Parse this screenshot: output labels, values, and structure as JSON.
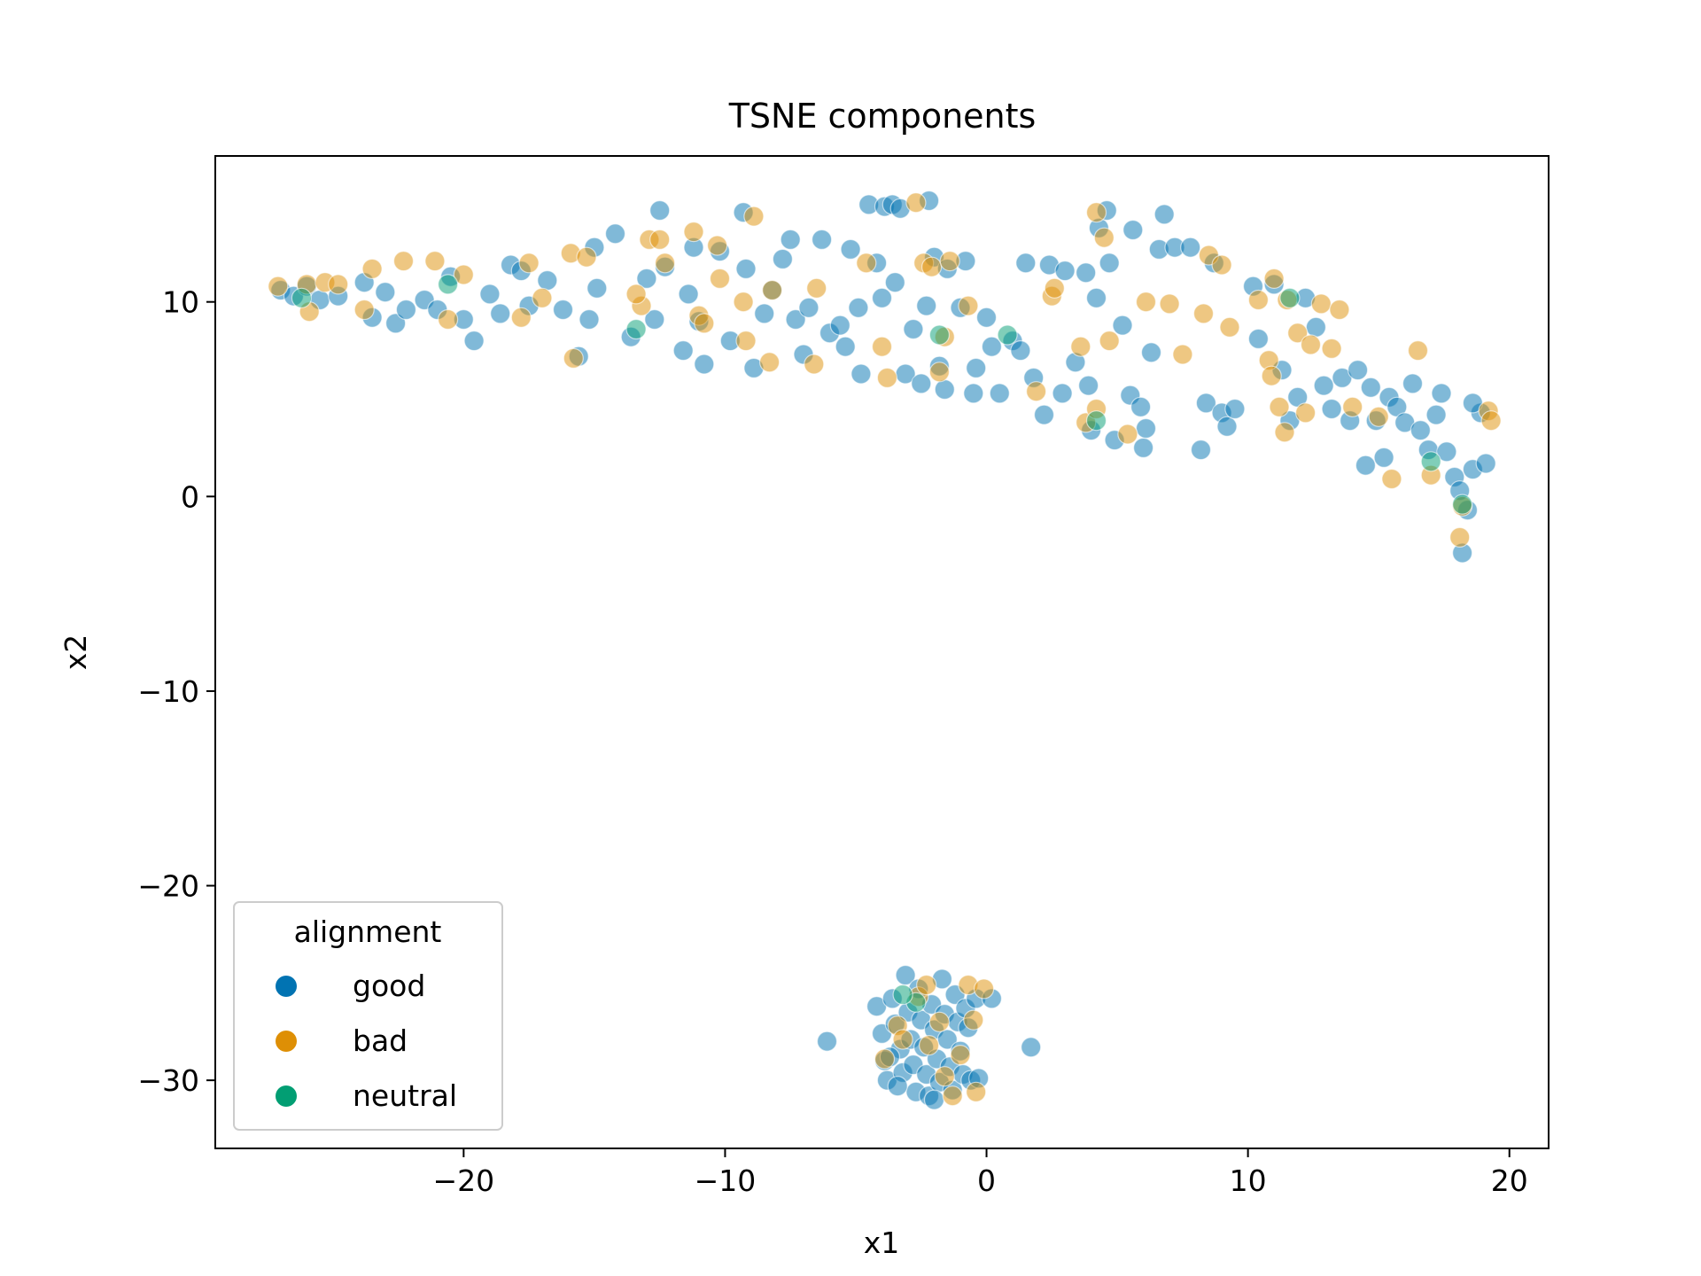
{
  "chart_data": {
    "type": "scatter",
    "title": "TSNE components",
    "xlabel": "x1",
    "ylabel": "x2",
    "xlim": [
      -29.5,
      21.5
    ],
    "ylim": [
      -33.5,
      17.5
    ],
    "xticks": [
      -20,
      -10,
      0,
      10,
      20
    ],
    "yticks": [
      10,
      0,
      -10,
      -20,
      -30
    ],
    "xtick_labels": [
      "−20",
      "−10",
      "0",
      "10",
      "20"
    ],
    "ytick_labels": [
      "10",
      "0",
      "−10",
      "−20",
      "−30"
    ],
    "grid": false,
    "legend": {
      "title": "alignment",
      "location": "lower-left",
      "entries": [
        {
          "label": "good",
          "color": "#0173b2"
        },
        {
          "label": "bad",
          "color": "#de8f05"
        },
        {
          "label": "neutral",
          "color": "#029e73"
        }
      ]
    },
    "point_alpha": 0.5,
    "series": [
      {
        "name": "good",
        "color": "#0173b2",
        "points": [
          [
            -27.0,
            10.6
          ],
          [
            -26.5,
            10.3
          ],
          [
            -26.0,
            10.8
          ],
          [
            -25.5,
            10.1
          ],
          [
            -24.8,
            10.3
          ],
          [
            -23.8,
            11.0
          ],
          [
            -23.5,
            9.2
          ],
          [
            -23.0,
            10.5
          ],
          [
            -22.6,
            8.9
          ],
          [
            -22.2,
            9.6
          ],
          [
            -21.5,
            10.1
          ],
          [
            -21.0,
            9.6
          ],
          [
            -20.5,
            11.3
          ],
          [
            -20.0,
            9.1
          ],
          [
            -19.6,
            8.0
          ],
          [
            -19.0,
            10.4
          ],
          [
            -18.6,
            9.4
          ],
          [
            -18.2,
            11.9
          ],
          [
            -17.8,
            11.6
          ],
          [
            -17.5,
            9.8
          ],
          [
            -16.8,
            11.1
          ],
          [
            -16.2,
            9.6
          ],
          [
            -15.6,
            7.2
          ],
          [
            -15.2,
            9.1
          ],
          [
            -14.9,
            10.7
          ],
          [
            -15.0,
            12.8
          ],
          [
            -14.2,
            13.5
          ],
          [
            -13.6,
            8.2
          ],
          [
            -13.0,
            11.2
          ],
          [
            -12.7,
            9.1
          ],
          [
            -12.5,
            14.7
          ],
          [
            -12.3,
            11.8
          ],
          [
            -11.6,
            7.5
          ],
          [
            -11.4,
            10.4
          ],
          [
            -11.2,
            12.8
          ],
          [
            -11.0,
            9.0
          ],
          [
            -10.8,
            6.8
          ],
          [
            -10.2,
            12.6
          ],
          [
            -9.8,
            8.0
          ],
          [
            -9.3,
            14.6
          ],
          [
            -9.2,
            11.7
          ],
          [
            -8.9,
            6.6
          ],
          [
            -8.5,
            9.4
          ],
          [
            -8.2,
            10.6
          ],
          [
            -7.8,
            12.2
          ],
          [
            -7.5,
            13.2
          ],
          [
            -7.3,
            9.1
          ],
          [
            -7.0,
            7.3
          ],
          [
            -6.8,
            9.7
          ],
          [
            -6.3,
            13.2
          ],
          [
            -6.0,
            8.4
          ],
          [
            -5.6,
            8.8
          ],
          [
            -5.4,
            7.7
          ],
          [
            -5.2,
            12.7
          ],
          [
            -4.9,
            9.7
          ],
          [
            -4.8,
            6.3
          ],
          [
            -4.5,
            15.0
          ],
          [
            -4.2,
            12.0
          ],
          [
            -4.0,
            10.2
          ],
          [
            -3.9,
            14.9
          ],
          [
            -3.6,
            15.0
          ],
          [
            -3.5,
            11.0
          ],
          [
            -3.3,
            14.8
          ],
          [
            -3.1,
            6.3
          ],
          [
            -2.8,
            8.6
          ],
          [
            -2.5,
            5.8
          ],
          [
            -2.3,
            9.8
          ],
          [
            -2.2,
            15.2
          ],
          [
            -2.0,
            12.3
          ],
          [
            -1.8,
            6.7
          ],
          [
            -1.6,
            5.5
          ],
          [
            -1.5,
            11.7
          ],
          [
            -1.0,
            9.7
          ],
          [
            -0.8,
            12.1
          ],
          [
            -0.5,
            5.3
          ],
          [
            -0.4,
            6.6
          ],
          [
            0.0,
            9.2
          ],
          [
            0.2,
            7.7
          ],
          [
            0.5,
            5.3
          ],
          [
            1.0,
            8.0
          ],
          [
            1.3,
            7.5
          ],
          [
            1.5,
            12.0
          ],
          [
            1.8,
            6.1
          ],
          [
            2.2,
            4.2
          ],
          [
            2.4,
            11.9
          ],
          [
            2.9,
            5.3
          ],
          [
            3.0,
            11.6
          ],
          [
            3.4,
            6.9
          ],
          [
            3.8,
            11.5
          ],
          [
            3.9,
            5.7
          ],
          [
            4.0,
            3.4
          ],
          [
            4.2,
            10.2
          ],
          [
            4.3,
            13.8
          ],
          [
            4.6,
            14.7
          ],
          [
            4.7,
            12.0
          ],
          [
            4.9,
            2.9
          ],
          [
            5.2,
            8.8
          ],
          [
            5.5,
            5.2
          ],
          [
            5.6,
            13.7
          ],
          [
            5.9,
            4.6
          ],
          [
            6.0,
            2.5
          ],
          [
            6.1,
            3.5
          ],
          [
            6.3,
            7.4
          ],
          [
            6.6,
            12.7
          ],
          [
            6.8,
            14.5
          ],
          [
            7.2,
            12.8
          ],
          [
            7.8,
            12.8
          ],
          [
            8.2,
            2.4
          ],
          [
            8.4,
            4.8
          ],
          [
            8.7,
            12.0
          ],
          [
            9.0,
            4.3
          ],
          [
            9.2,
            3.6
          ],
          [
            9.5,
            4.5
          ],
          [
            10.2,
            10.8
          ],
          [
            10.4,
            8.1
          ],
          [
            11.0,
            10.9
          ],
          [
            11.3,
            6.5
          ],
          [
            11.6,
            3.9
          ],
          [
            11.9,
            5.1
          ],
          [
            12.2,
            10.2
          ],
          [
            12.6,
            8.7
          ],
          [
            12.9,
            5.7
          ],
          [
            13.2,
            4.5
          ],
          [
            13.6,
            6.1
          ],
          [
            13.9,
            3.9
          ],
          [
            14.2,
            6.5
          ],
          [
            14.5,
            1.6
          ],
          [
            14.7,
            5.6
          ],
          [
            14.9,
            3.9
          ],
          [
            15.2,
            2.0
          ],
          [
            15.4,
            5.1
          ],
          [
            15.7,
            4.6
          ],
          [
            16.0,
            3.8
          ],
          [
            16.3,
            5.8
          ],
          [
            16.6,
            3.4
          ],
          [
            16.9,
            2.4
          ],
          [
            17.2,
            4.2
          ],
          [
            17.4,
            5.3
          ],
          [
            17.6,
            2.3
          ],
          [
            17.9,
            1.0
          ],
          [
            18.1,
            0.3
          ],
          [
            18.2,
            -2.9
          ],
          [
            18.4,
            -0.7
          ],
          [
            18.6,
            1.4
          ],
          [
            18.9,
            4.3
          ],
          [
            19.1,
            1.7
          ],
          [
            18.6,
            4.8
          ],
          [
            -6.1,
            -28.0
          ],
          [
            1.7,
            -28.3
          ],
          [
            -4.2,
            -26.2
          ],
          [
            -4.0,
            -27.6
          ],
          [
            -3.9,
            -29.0
          ],
          [
            -3.8,
            -30.0
          ],
          [
            -3.6,
            -25.8
          ],
          [
            -3.5,
            -27.1
          ],
          [
            -3.3,
            -28.4
          ],
          [
            -3.2,
            -29.6
          ],
          [
            -3.1,
            -24.6
          ],
          [
            -3.0,
            -26.5
          ],
          [
            -2.9,
            -27.9
          ],
          [
            -2.8,
            -29.2
          ],
          [
            -2.7,
            -30.6
          ],
          [
            -2.6,
            -25.3
          ],
          [
            -2.5,
            -26.9
          ],
          [
            -2.4,
            -28.3
          ],
          [
            -2.3,
            -29.7
          ],
          [
            -2.2,
            -30.8
          ],
          [
            -2.1,
            -26.1
          ],
          [
            -2.0,
            -27.4
          ],
          [
            -1.9,
            -28.9
          ],
          [
            -1.8,
            -30.1
          ],
          [
            -1.7,
            -24.8
          ],
          [
            -1.6,
            -26.6
          ],
          [
            -1.5,
            -27.9
          ],
          [
            -1.4,
            -29.3
          ],
          [
            -1.3,
            -30.5
          ],
          [
            -1.2,
            -25.6
          ],
          [
            -1.1,
            -27.0
          ],
          [
            -1.0,
            -28.5
          ],
          [
            -0.9,
            -29.7
          ],
          [
            -0.8,
            -26.3
          ],
          [
            -0.7,
            -27.3
          ],
          [
            -0.6,
            -30.0
          ],
          [
            -0.4,
            -25.8
          ],
          [
            -0.3,
            -29.9
          ],
          [
            -3.7,
            -28.8
          ],
          [
            -3.4,
            -30.3
          ],
          [
            -2.0,
            -31.0
          ],
          [
            0.2,
            -25.8
          ]
        ]
      },
      {
        "name": "bad",
        "color": "#de8f05",
        "points": [
          [
            -27.1,
            10.8
          ],
          [
            -26.0,
            10.9
          ],
          [
            -25.9,
            9.5
          ],
          [
            -25.3,
            11.0
          ],
          [
            -24.8,
            10.9
          ],
          [
            -23.5,
            11.7
          ],
          [
            -23.8,
            9.6
          ],
          [
            -22.3,
            12.1
          ],
          [
            -21.1,
            12.1
          ],
          [
            -20.6,
            9.1
          ],
          [
            -20.0,
            11.4
          ],
          [
            -17.8,
            9.2
          ],
          [
            -17.5,
            12.0
          ],
          [
            -17.0,
            10.2
          ],
          [
            -15.9,
            12.5
          ],
          [
            -15.3,
            12.3
          ],
          [
            -15.8,
            7.1
          ],
          [
            -13.2,
            9.8
          ],
          [
            -13.4,
            10.4
          ],
          [
            -12.9,
            13.2
          ],
          [
            -12.5,
            13.2
          ],
          [
            -12.3,
            12.0
          ],
          [
            -11.2,
            13.6
          ],
          [
            -11.0,
            9.3
          ],
          [
            -10.8,
            8.9
          ],
          [
            -10.3,
            12.9
          ],
          [
            -10.2,
            11.2
          ],
          [
            -9.3,
            10.0
          ],
          [
            -9.2,
            8.0
          ],
          [
            -8.9,
            14.4
          ],
          [
            -8.3,
            6.9
          ],
          [
            -8.2,
            10.6
          ],
          [
            -6.5,
            10.7
          ],
          [
            -6.6,
            6.8
          ],
          [
            -4.6,
            12.0
          ],
          [
            -4.0,
            7.7
          ],
          [
            -3.8,
            6.1
          ],
          [
            -2.7,
            15.1
          ],
          [
            -2.4,
            12.0
          ],
          [
            -2.1,
            11.8
          ],
          [
            -1.8,
            6.4
          ],
          [
            -1.6,
            8.2
          ],
          [
            -1.4,
            12.1
          ],
          [
            -0.7,
            9.8
          ],
          [
            1.9,
            5.4
          ],
          [
            2.5,
            10.3
          ],
          [
            2.6,
            10.7
          ],
          [
            3.6,
            7.7
          ],
          [
            3.8,
            3.8
          ],
          [
            4.2,
            4.5
          ],
          [
            4.2,
            14.6
          ],
          [
            4.7,
            8.0
          ],
          [
            4.5,
            13.3
          ],
          [
            5.4,
            3.2
          ],
          [
            6.1,
            10.0
          ],
          [
            7.0,
            9.9
          ],
          [
            7.5,
            7.3
          ],
          [
            8.3,
            9.4
          ],
          [
            8.5,
            12.4
          ],
          [
            9.0,
            11.9
          ],
          [
            9.3,
            8.7
          ],
          [
            10.4,
            10.1
          ],
          [
            10.8,
            7.0
          ],
          [
            10.9,
            6.2
          ],
          [
            11.0,
            11.2
          ],
          [
            11.2,
            4.6
          ],
          [
            11.4,
            3.3
          ],
          [
            11.5,
            10.1
          ],
          [
            11.9,
            8.4
          ],
          [
            12.4,
            7.8
          ],
          [
            12.2,
            4.3
          ],
          [
            12.8,
            9.9
          ],
          [
            13.2,
            7.6
          ],
          [
            13.5,
            9.6
          ],
          [
            14.0,
            4.6
          ],
          [
            15.0,
            4.1
          ],
          [
            15.5,
            0.9
          ],
          [
            16.5,
            7.5
          ],
          [
            17.0,
            1.1
          ],
          [
            18.1,
            -2.1
          ],
          [
            18.2,
            -0.5
          ],
          [
            19.2,
            4.4
          ],
          [
            19.3,
            3.9
          ],
          [
            -3.9,
            -28.9
          ],
          [
            -3.4,
            -27.2
          ],
          [
            -2.6,
            -25.7
          ],
          [
            -2.3,
            -25.1
          ],
          [
            -2.2,
            -28.2
          ],
          [
            -1.8,
            -27.0
          ],
          [
            -1.6,
            -29.8
          ],
          [
            -1.3,
            -30.8
          ],
          [
            -1.0,
            -28.7
          ],
          [
            -0.7,
            -25.1
          ],
          [
            -0.5,
            -26.9
          ],
          [
            -0.4,
            -30.6
          ],
          [
            -0.1,
            -25.3
          ],
          [
            -3.2,
            -27.9
          ]
        ]
      },
      {
        "name": "neutral",
        "color": "#029e73",
        "points": [
          [
            -26.2,
            10.2
          ],
          [
            -20.6,
            10.9
          ],
          [
            -13.4,
            8.6
          ],
          [
            -1.8,
            8.3
          ],
          [
            0.8,
            8.3
          ],
          [
            4.2,
            3.9
          ],
          [
            11.6,
            10.2
          ],
          [
            17.0,
            1.8
          ],
          [
            18.2,
            -0.4
          ],
          [
            -2.7,
            -26.0
          ],
          [
            -3.2,
            -25.6
          ]
        ]
      }
    ]
  }
}
